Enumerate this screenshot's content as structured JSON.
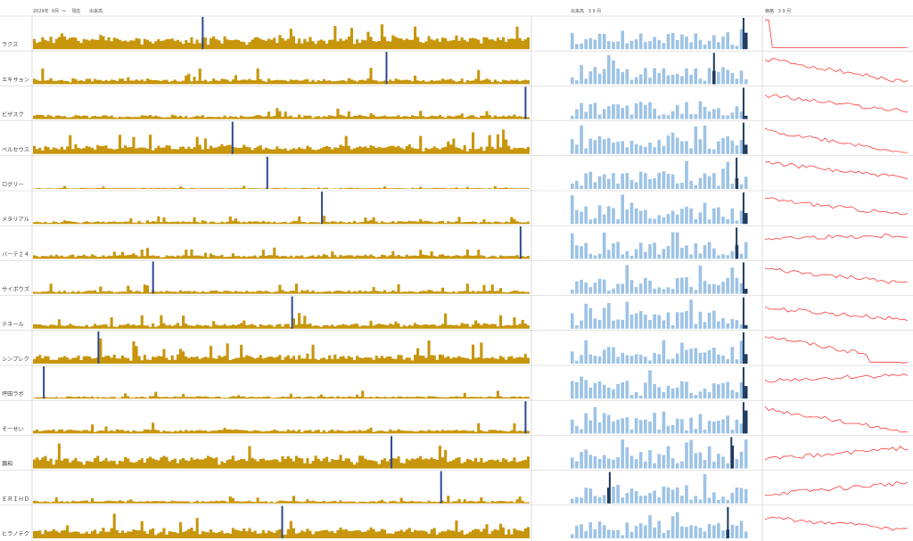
{
  "headers": {
    "left": "2024年  9月  ～    現在      出来高",
    "middle": "出来高   3 9 月",
    "right": "価格   3 9 月"
  },
  "colors": {
    "daily_bar": "#c8960c",
    "monthly_bar": "#9dc3e6",
    "highlight_bar": "#2f4a8f",
    "monthly_highlight": "#1f3a5f",
    "price_line": "#ff3b3b",
    "grid": "#c8c8c8"
  },
  "chart_data": {
    "type": "bar",
    "rows": [
      {
        "name": "ラクス",
        "seed": 11,
        "base": 0.35,
        "noise": 0.35,
        "hi": 0.34,
        "mhi": 0.99,
        "pstart": 0.95,
        "pend": 0.12,
        "drop": 0.05
      },
      {
        "name": "エキサョン",
        "seed": 23,
        "base": 0.12,
        "noise": 0.25,
        "hi": 0.71,
        "mhi": 0.82,
        "pstart": 0.85,
        "pend": 0.05,
        "drop": -1
      },
      {
        "name": "ビザスク",
        "seed": 37,
        "base": 0.08,
        "noise": 0.2,
        "hi": 0.99,
        "mhi": 0.99,
        "pstart": 0.82,
        "pend": 0.25,
        "drop": -1
      },
      {
        "name": "ベルセウス",
        "seed": 41,
        "base": 0.2,
        "noise": 0.35,
        "hi": 0.4,
        "mhi": 0.99,
        "pstart": 0.8,
        "pend": 0.05,
        "drop": 0.97
      },
      {
        "name": "ログリー",
        "seed": 53,
        "base": 0.02,
        "noise": 0.05,
        "hi": 0.47,
        "mhi": 0.95,
        "pstart": 0.9,
        "pend": 0.35,
        "drop": -1
      },
      {
        "name": "メタリアル",
        "seed": 67,
        "base": 0.06,
        "noise": 0.12,
        "hi": 0.58,
        "mhi": 0.99,
        "pstart": 0.85,
        "pend": 0.3,
        "drop": -1
      },
      {
        "name": "バーテ２４",
        "seed": 71,
        "base": 0.1,
        "noise": 0.15,
        "hi": 0.98,
        "mhi": 0.95,
        "pstart": 0.7,
        "pend": 0.8,
        "drop": -1
      },
      {
        "name": "サイボウズ",
        "seed": 83,
        "base": 0.07,
        "noise": 0.15,
        "hi": 0.24,
        "mhi": 0.99,
        "pstart": 0.85,
        "pend": 0.35,
        "drop": -1
      },
      {
        "name": "テネール",
        "seed": 97,
        "base": 0.1,
        "noise": 0.25,
        "hi": 0.52,
        "mhi": 0.99,
        "pstart": 0.7,
        "pend": 0.3,
        "drop": -1
      },
      {
        "name": "シンプレク",
        "seed": 101,
        "base": 0.2,
        "noise": 0.35,
        "hi": 0.13,
        "mhi": 0.99,
        "pstart": 0.95,
        "pend": 0.05,
        "drop": 0.72
      },
      {
        "name": "坪田ラボ",
        "seed": 113,
        "base": 0.04,
        "noise": 0.12,
        "hi": 0.02,
        "mhi": 0.99,
        "pstart": 0.6,
        "pend": 0.8,
        "drop": -1
      },
      {
        "name": "そーせい",
        "seed": 127,
        "base": 0.1,
        "noise": 0.15,
        "hi": 0.99,
        "mhi": 0.99,
        "pstart": 0.85,
        "pend": 0.05,
        "drop": 0.97
      },
      {
        "name": "壽和",
        "seed": 131,
        "base": 0.3,
        "noise": 0.4,
        "hi": 0.72,
        "mhi": 0.92,
        "pstart": 0.3,
        "pend": 0.7,
        "drop": -1
      },
      {
        "name": "ＥＲＩＨＤ",
        "seed": 139,
        "base": 0.06,
        "noise": 0.12,
        "hi": 0.82,
        "mhi": 0.22,
        "pstart": 0.3,
        "pend": 0.7,
        "drop": -1
      },
      {
        "name": "ヒラノテク",
        "seed": 149,
        "base": 0.25,
        "noise": 0.35,
        "hi": 0.5,
        "mhi": 0.9,
        "pstart": 0.7,
        "pend": 0.3,
        "drop": -1
      }
    ]
  }
}
